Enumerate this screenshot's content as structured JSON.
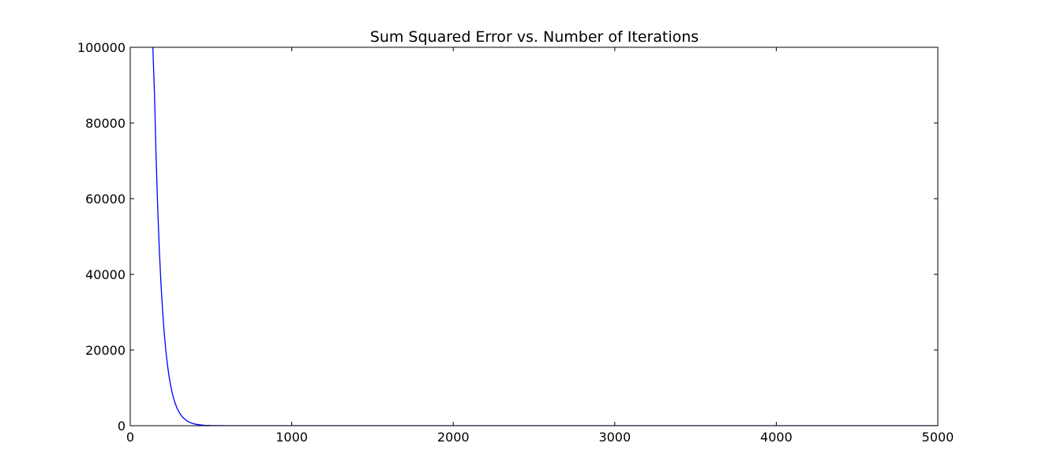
{
  "chart_data": {
    "type": "line",
    "title": "Sum Squared Error vs. Number of Iterations",
    "xlabel": "",
    "ylabel": "",
    "xlim": [
      0,
      5000
    ],
    "ylim": [
      0,
      100000
    ],
    "xticks": [
      0,
      1000,
      2000,
      3000,
      4000,
      5000
    ],
    "yticks": [
      0,
      20000,
      40000,
      60000,
      80000,
      100000
    ],
    "grid": false,
    "legend": "none",
    "series": [
      {
        "color": "#0000ff",
        "x": [
          140,
          150,
          160,
          170,
          180,
          190,
          200,
          210,
          220,
          230,
          240,
          250,
          260,
          275,
          290,
          310,
          330,
          350,
          375,
          400,
          430,
          460,
          500,
          550,
          600,
          700,
          800,
          1000,
          1500,
          2000,
          3000,
          4000,
          5000
        ],
        "y": [
          100000,
          87700,
          71000,
          57500,
          46500,
          37700,
          30500,
          24700,
          20000,
          16200,
          13100,
          10600,
          8600,
          6300,
          4600,
          3000,
          2000,
          1300,
          750,
          430,
          220,
          110,
          45,
          15,
          5,
          1,
          0,
          0,
          0,
          0,
          0,
          0,
          0
        ]
      }
    ]
  }
}
